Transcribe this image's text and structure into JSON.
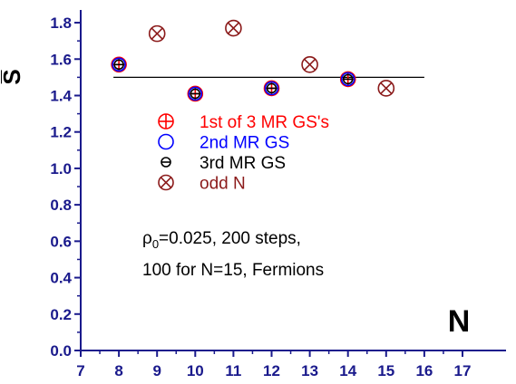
{
  "chart_data": {
    "type": "scatter",
    "xlabel": "N",
    "ylabel": "S̅",
    "xlim": [
      7,
      17
    ],
    "ylim": [
      0.0,
      1.85
    ],
    "x_ticks": [
      7,
      8,
      9,
      10,
      11,
      12,
      13,
      14,
      15,
      16,
      17
    ],
    "y_ticks": [
      0.0,
      0.2,
      0.4,
      0.6,
      0.8,
      1.0,
      1.2,
      1.4,
      1.6,
      1.8
    ],
    "x_tick_labels": [
      "7",
      "8",
      "9",
      "10",
      "11",
      "12",
      "13",
      "14",
      "15",
      "16",
      "17"
    ],
    "y_tick_labels": [
      "0.0",
      "0.2",
      "0.4",
      "0.6",
      "0.8",
      "1.0",
      "1.2",
      "1.4",
      "1.6",
      "1.8"
    ],
    "reference_line": {
      "y": 1.5,
      "x_range": [
        8,
        16
      ]
    },
    "series": [
      {
        "name": "1st of 3 MR GS's",
        "marker": "circle-plus",
        "color": "#ff0000",
        "points": [
          [
            8,
            1.57
          ],
          [
            10,
            1.41
          ],
          [
            12,
            1.44
          ],
          [
            14,
            1.49
          ]
        ]
      },
      {
        "name": "2nd MR GS",
        "marker": "circle",
        "color": "#0000ff",
        "points": [
          [
            8,
            1.57
          ],
          [
            10,
            1.41
          ],
          [
            12,
            1.44
          ],
          [
            14,
            1.49
          ]
        ]
      },
      {
        "name": "3rd MR GS",
        "marker": "circle-minus",
        "color": "#000000",
        "points": [
          [
            8,
            1.57
          ],
          [
            10,
            1.41
          ],
          [
            12,
            1.44
          ],
          [
            14,
            1.49
          ]
        ]
      },
      {
        "name": "odd N",
        "marker": "circle-x",
        "color": "#8b1a1a",
        "points": [
          [
            9,
            1.74
          ],
          [
            11,
            1.77
          ],
          [
            13,
            1.57
          ],
          [
            15,
            1.44
          ]
        ]
      }
    ],
    "annotation": {
      "rho_symbol": "ρ",
      "rho_subscript": "0",
      "line1_rest": "=0.025, 200 steps,",
      "line2": "100 for N=15, Fermions"
    },
    "legend_placement": "center-left"
  }
}
